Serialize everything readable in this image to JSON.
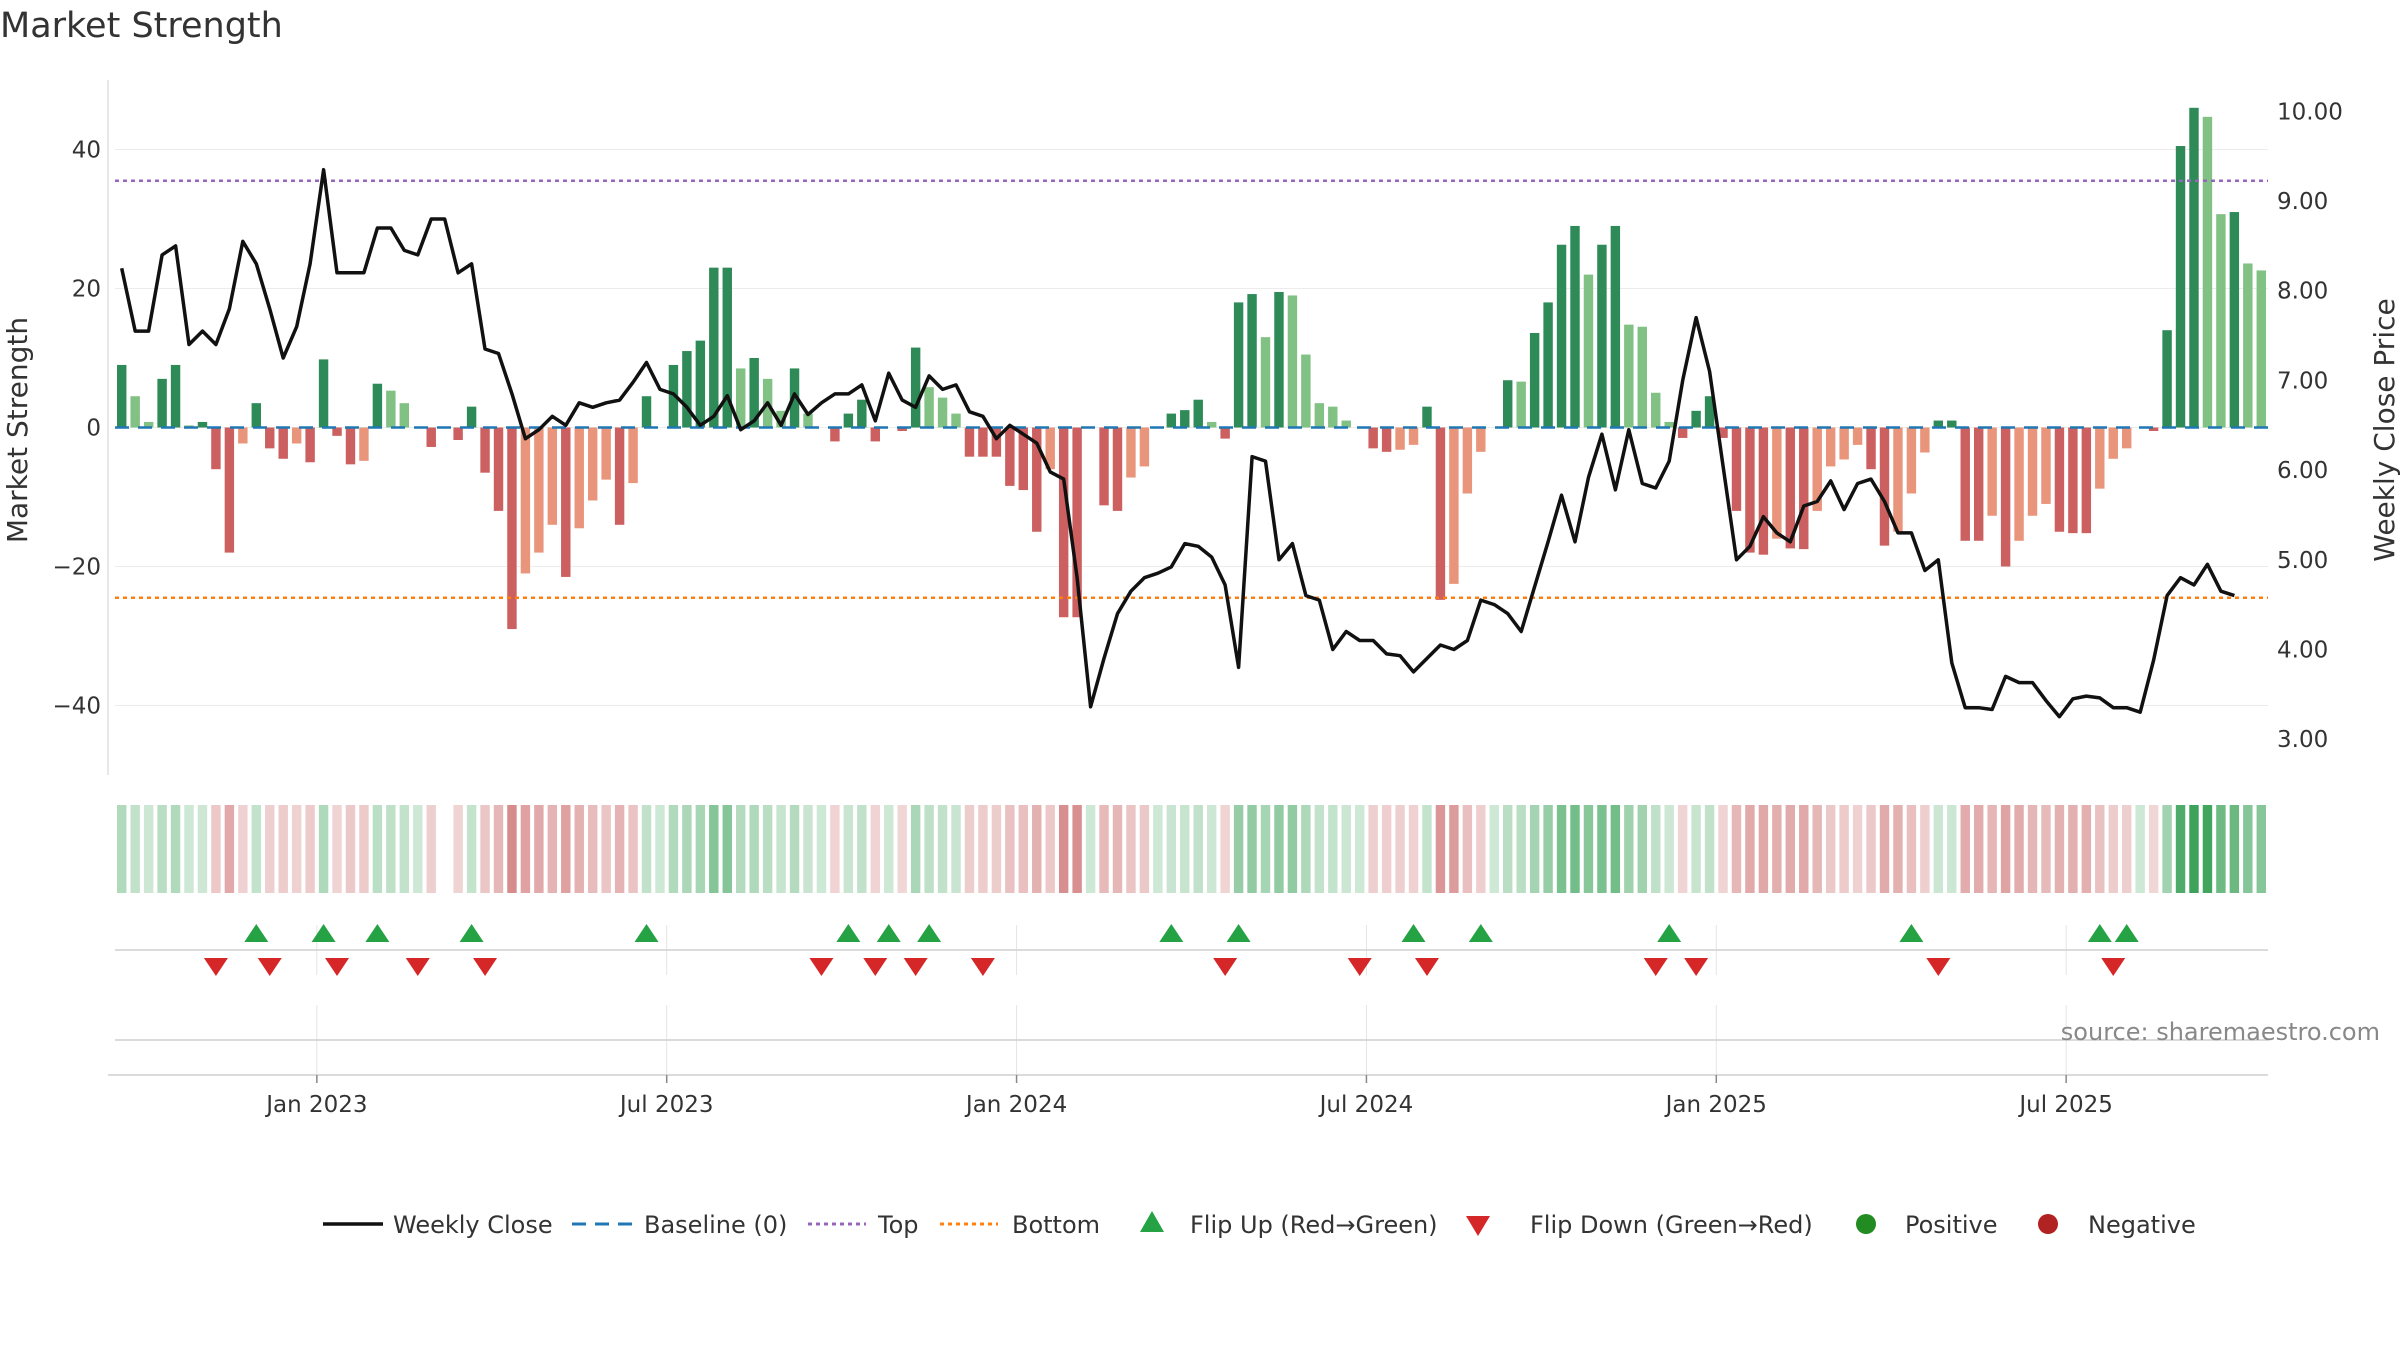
{
  "chart_data": {
    "type": "bar",
    "title": "Market Strength",
    "ylabel_left": "Market Strength",
    "ylabel_right": "Weekly Close Price",
    "ylim_left": [
      -50,
      50
    ],
    "ylim_right": [
      2.6,
      10.35
    ],
    "yticks_left": [
      {
        "v": 40,
        "label": "40"
      },
      {
        "v": 20,
        "label": "20"
      },
      {
        "v": 0,
        "label": "0"
      },
      {
        "v": -20,
        "label": "−20"
      },
      {
        "v": -40,
        "label": "−40"
      }
    ],
    "yticks_right": [
      {
        "v": 10,
        "label": "10.00"
      },
      {
        "v": 9,
        "label": "9.00"
      },
      {
        "v": 8,
        "label": "8.00"
      },
      {
        "v": 7,
        "label": "7.00"
      },
      {
        "v": 6,
        "label": "6.00"
      },
      {
        "v": 5,
        "label": "5.00"
      },
      {
        "v": 4,
        "label": "4.00"
      },
      {
        "v": 3,
        "label": "3.00"
      }
    ],
    "xticks": [
      {
        "w": 15,
        "label": "Jan 2023"
      },
      {
        "w": 41,
        "label": "Jul 2023"
      },
      {
        "w": 67,
        "label": "Jan 2024"
      },
      {
        "w": 93,
        "label": "Jul 2024"
      },
      {
        "w": 119,
        "label": "Jan 2025"
      },
      {
        "w": 145,
        "label": "Jul 2025"
      }
    ],
    "top_line": 35.5,
    "bottom_line": -24.5,
    "baseline": 0,
    "strength": [
      9,
      4.5,
      0.8,
      7,
      9,
      0.3,
      0.8,
      -6,
      -18,
      -2.3,
      3.5,
      -3,
      -4.5,
      -2.3,
      -5,
      9.8,
      -1.2,
      -5.3,
      -4.8,
      6.3,
      5.3,
      3.5,
      0,
      -2.8,
      0,
      -1.8,
      3,
      -6.5,
      -12,
      -29,
      -21,
      -18,
      -14,
      -21.5,
      -14.5,
      -10.5,
      -7.5,
      -14,
      -8,
      4.5,
      0,
      9,
      11,
      12.5,
      23,
      23,
      8.5,
      10,
      7,
      2.4,
      8.5,
      2,
      0,
      -2,
      2,
      4,
      -2,
      0,
      -0.5,
      11.5,
      5.8,
      4.3,
      2,
      -4.2,
      -4.2,
      -4.2,
      -8.4,
      -9,
      -15,
      -6,
      -27.3,
      -27.3,
      0,
      -11.2,
      -12,
      -7.2,
      -5.6,
      0,
      2,
      2.5,
      4,
      0.8,
      -1.6,
      18,
      19.2,
      13,
      19.5,
      19,
      10.5,
      3.5,
      3,
      1,
      0,
      -3,
      -3.5,
      -3.2,
      -2.5,
      3,
      -24.8,
      -22.5,
      -9.5,
      -3.5,
      0,
      6.8,
      6.6,
      13.6,
      18,
      26.3,
      29,
      22,
      26.3,
      29,
      14.8,
      14.5,
      5,
      0.8,
      -1.5,
      2.4,
      4.5,
      -1.5,
      -12,
      -18,
      -18.3,
      -16,
      -17.4,
      -17.5,
      -12,
      -5.6,
      -4.6,
      -2.5,
      -6,
      -17,
      -15,
      -9.5,
      -3.6,
      1,
      1,
      -16.3,
      -16.3,
      -12.7,
      -20,
      -16.3,
      -12.7,
      -11,
      -15,
      -15.2,
      -15.2,
      -8.8,
      -4.5,
      -3,
      0,
      -0.5,
      14,
      40.5,
      46,
      44.7,
      30.7,
      31,
      23.6,
      22.6
    ],
    "price": [
      8.25,
      7.55,
      7.55,
      8.4,
      8.5,
      7.4,
      7.55,
      7.4,
      7.8,
      8.55,
      8.3,
      7.8,
      7.25,
      7.6,
      8.3,
      9.35,
      8.2,
      8.2,
      8.2,
      8.7,
      8.7,
      8.45,
      8.4,
      8.8,
      8.8,
      8.2,
      8.3,
      7.35,
      7.3,
      6.85,
      6.35,
      6.45,
      6.6,
      6.5,
      6.75,
      6.7,
      6.75,
      6.78,
      6.98,
      7.2,
      6.9,
      6.85,
      6.7,
      6.5,
      6.6,
      6.83,
      6.45,
      6.55,
      6.75,
      6.5,
      6.85,
      6.62,
      6.75,
      6.85,
      6.85,
      6.95,
      6.55,
      7.08,
      6.78,
      6.7,
      7.05,
      6.9,
      6.95,
      6.65,
      6.6,
      6.35,
      6.5,
      6.4,
      6.3,
      5.98,
      5.9,
      4.8,
      3.36,
      3.9,
      4.4,
      4.65,
      4.8,
      4.85,
      4.92,
      5.18,
      5.15,
      5.03,
      4.72,
      3.8,
      6.15,
      6.1,
      5.0,
      5.18,
      4.6,
      4.55,
      4.0,
      4.2,
      4.1,
      4.1,
      3.95,
      3.93,
      3.75,
      3.9,
      4.05,
      4.0,
      4.1,
      4.55,
      4.5,
      4.4,
      4.2,
      4.7,
      5.2,
      5.72,
      5.2,
      5.92,
      6.4,
      5.78,
      6.45,
      5.85,
      5.8,
      6.1,
      7.0,
      7.7,
      7.1,
      6.05,
      5.0,
      5.15,
      5.48,
      5.3,
      5.2,
      5.6,
      5.65,
      5.88,
      5.56,
      5.85,
      5.9,
      5.65,
      5.3,
      5.3,
      4.88,
      5.0,
      3.85,
      3.35,
      3.35,
      3.33,
      3.7,
      3.63,
      3.63,
      3.43,
      3.25,
      3.45,
      3.48,
      3.46,
      3.35,
      3.35,
      3.3,
      3.88,
      4.6,
      4.8,
      4.72,
      4.95,
      4.65,
      4.6
    ],
    "gaps": [
      24
    ],
    "flip_up": [
      10,
      15,
      19,
      26,
      39,
      54,
      57,
      60,
      78,
      83,
      96,
      101,
      115,
      133,
      147,
      149
    ],
    "flip_down": [
      7,
      11,
      16,
      22,
      27,
      52,
      56,
      59,
      64,
      82,
      92,
      97,
      114,
      117,
      135,
      148
    ],
    "legend": {
      "weekly_close": "Weekly Close",
      "baseline": "Baseline (0)",
      "top": "Top",
      "bottom": "Bottom",
      "flip_up": "Flip Up (Red→Green)",
      "flip_down": "Flip Down (Green→Red)",
      "positive": "Positive",
      "negative": "Negative"
    },
    "source": "source: sharemaestro.com"
  },
  "colors": {
    "pos_strong": "#2e8a57",
    "pos_weak": "#81c184",
    "neg_strong": "#cc5f5f",
    "neg_weak": "#e9957b",
    "line": "#111111",
    "baseline": "#1f77b4",
    "top": "#9467bd",
    "bottom": "#ff7f0e",
    "flip_up": "#25a244",
    "flip_down": "#d62728",
    "positive_dot": "#228b22",
    "negative_dot": "#b22222",
    "source": "#888888"
  }
}
